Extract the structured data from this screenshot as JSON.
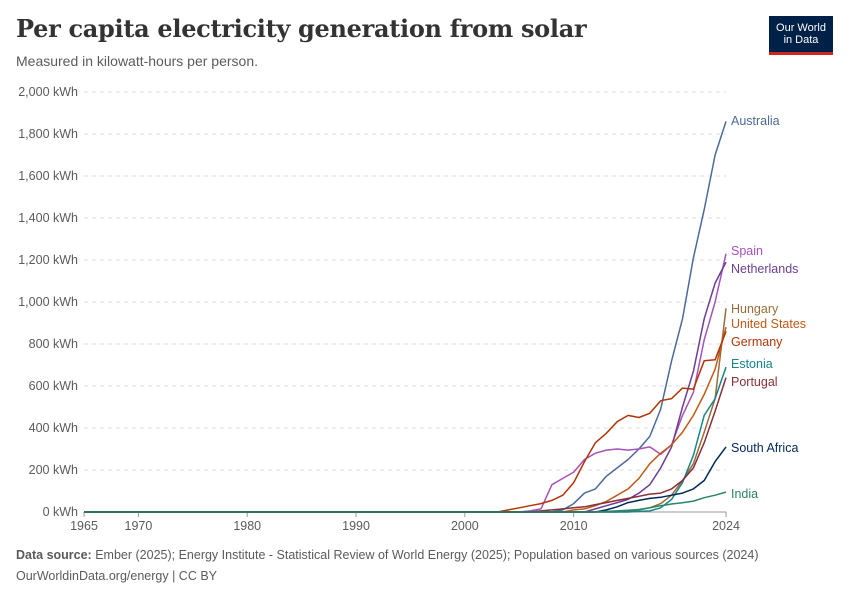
{
  "header": {
    "title": "Per capita electricity generation from solar",
    "subtitle": "Measured in kilowatt-hours per person."
  },
  "logo": {
    "line1": "Our World",
    "line2": "in Data",
    "bg_color": "#002147",
    "accent_color": "#ce261e"
  },
  "footer": {
    "source_label": "Data source:",
    "source_text": " Ember (2025); Energy Institute - Statistical Review of World Energy (2025); Population based on various sources (2024)",
    "url_text": "OurWorldinData.org/energy | CC BY"
  },
  "chart_data": {
    "type": "line",
    "title": "Per capita electricity generation from solar",
    "subtitle": "Measured in kilowatt-hours per person.",
    "xlabel": "",
    "ylabel": "",
    "xlim": [
      1965,
      2024
    ],
    "ylim": [
      0,
      2000
    ],
    "x_ticks": [
      1965,
      1970,
      1980,
      1990,
      2000,
      2010,
      2024
    ],
    "y_ticks": [
      0,
      200,
      400,
      600,
      800,
      1000,
      1200,
      1400,
      1600,
      1800,
      2000
    ],
    "y_tick_labels": [
      "0 kWh",
      "200 kWh",
      "400 kWh",
      "600 kWh",
      "800 kWh",
      "1,000 kWh",
      "1,200 kWh",
      "1,400 kWh",
      "1,600 kWh",
      "1,800 kWh",
      "2,000 kWh"
    ],
    "grid": "horizontal dashed",
    "legend": "right, end-of-line labels",
    "series": [
      {
        "name": "Australia",
        "color": "#4c6a9c",
        "points": [
          [
            1965,
            0
          ],
          [
            2005,
            0
          ],
          [
            2008,
            1
          ],
          [
            2009,
            10
          ],
          [
            2010,
            40
          ],
          [
            2011,
            90
          ],
          [
            2012,
            110
          ],
          [
            2013,
            170
          ],
          [
            2014,
            210
          ],
          [
            2015,
            250
          ],
          [
            2016,
            300
          ],
          [
            2017,
            360
          ],
          [
            2018,
            490
          ],
          [
            2019,
            720
          ],
          [
            2020,
            920
          ],
          [
            2021,
            1210
          ],
          [
            2022,
            1440
          ],
          [
            2023,
            1700
          ],
          [
            2024,
            1860
          ]
        ]
      },
      {
        "name": "Spain",
        "color": "#a652ba",
        "points": [
          [
            1965,
            0
          ],
          [
            2005,
            0
          ],
          [
            2006,
            5
          ],
          [
            2007,
            15
          ],
          [
            2008,
            130
          ],
          [
            2009,
            160
          ],
          [
            2010,
            190
          ],
          [
            2011,
            250
          ],
          [
            2012,
            280
          ],
          [
            2013,
            295
          ],
          [
            2014,
            300
          ],
          [
            2015,
            295
          ],
          [
            2016,
            300
          ],
          [
            2017,
            310
          ],
          [
            2018,
            275
          ],
          [
            2019,
            320
          ],
          [
            2020,
            460
          ],
          [
            2021,
            570
          ],
          [
            2022,
            820
          ],
          [
            2023,
            1000
          ],
          [
            2024,
            1230
          ]
        ]
      },
      {
        "name": "Netherlands",
        "color": "#6d3e91",
        "points": [
          [
            1965,
            0
          ],
          [
            2011,
            0
          ],
          [
            2012,
            15
          ],
          [
            2013,
            30
          ],
          [
            2014,
            45
          ],
          [
            2015,
            60
          ],
          [
            2016,
            90
          ],
          [
            2017,
            130
          ],
          [
            2018,
            210
          ],
          [
            2019,
            310
          ],
          [
            2020,
            500
          ],
          [
            2021,
            670
          ],
          [
            2022,
            920
          ],
          [
            2023,
            1090
          ],
          [
            2024,
            1190
          ]
        ]
      },
      {
        "name": "Hungary",
        "color": "#996d39",
        "points": [
          [
            1965,
            0
          ],
          [
            2014,
            0
          ],
          [
            2015,
            5
          ],
          [
            2016,
            10
          ],
          [
            2017,
            20
          ],
          [
            2018,
            40
          ],
          [
            2019,
            80
          ],
          [
            2020,
            150
          ],
          [
            2021,
            230
          ],
          [
            2022,
            380
          ],
          [
            2023,
            540
          ],
          [
            2024,
            970
          ]
        ]
      },
      {
        "name": "United States",
        "color": "#c05917",
        "points": [
          [
            1965,
            0
          ],
          [
            2009,
            0
          ],
          [
            2010,
            10
          ],
          [
            2011,
            15
          ],
          [
            2012,
            30
          ],
          [
            2013,
            50
          ],
          [
            2014,
            80
          ],
          [
            2015,
            110
          ],
          [
            2016,
            160
          ],
          [
            2017,
            230
          ],
          [
            2018,
            280
          ],
          [
            2019,
            320
          ],
          [
            2020,
            380
          ],
          [
            2021,
            460
          ],
          [
            2022,
            560
          ],
          [
            2023,
            680
          ],
          [
            2024,
            880
          ]
        ]
      },
      {
        "name": "Germany",
        "color": "#b13507",
        "points": [
          [
            1965,
            0
          ],
          [
            2003,
            0
          ],
          [
            2004,
            10
          ],
          [
            2005,
            20
          ],
          [
            2006,
            30
          ],
          [
            2007,
            40
          ],
          [
            2008,
            55
          ],
          [
            2009,
            80
          ],
          [
            2010,
            140
          ],
          [
            2011,
            240
          ],
          [
            2012,
            330
          ],
          [
            2013,
            375
          ],
          [
            2014,
            430
          ],
          [
            2015,
            460
          ],
          [
            2016,
            450
          ],
          [
            2017,
            470
          ],
          [
            2018,
            530
          ],
          [
            2019,
            540
          ],
          [
            2020,
            590
          ],
          [
            2021,
            585
          ],
          [
            2022,
            720
          ],
          [
            2023,
            725
          ],
          [
            2024,
            860
          ]
        ]
      },
      {
        "name": "Estonia",
        "color": "#18848c",
        "points": [
          [
            1965,
            0
          ],
          [
            2015,
            0
          ],
          [
            2016,
            3
          ],
          [
            2017,
            5
          ],
          [
            2018,
            20
          ],
          [
            2019,
            60
          ],
          [
            2020,
            140
          ],
          [
            2021,
            270
          ],
          [
            2022,
            460
          ],
          [
            2023,
            540
          ],
          [
            2024,
            690
          ]
        ]
      },
      {
        "name": "Portugal",
        "color": "#883039",
        "points": [
          [
            1965,
            0
          ],
          [
            2006,
            0
          ],
          [
            2007,
            5
          ],
          [
            2008,
            10
          ],
          [
            2009,
            15
          ],
          [
            2010,
            20
          ],
          [
            2011,
            25
          ],
          [
            2012,
            35
          ],
          [
            2013,
            45
          ],
          [
            2014,
            55
          ],
          [
            2015,
            65
          ],
          [
            2016,
            75
          ],
          [
            2017,
            85
          ],
          [
            2018,
            90
          ],
          [
            2019,
            110
          ],
          [
            2020,
            150
          ],
          [
            2021,
            210
          ],
          [
            2022,
            330
          ],
          [
            2023,
            480
          ],
          [
            2024,
            640
          ]
        ]
      },
      {
        "name": "South Africa",
        "color": "#00295b",
        "points": [
          [
            1965,
            0
          ],
          [
            2012,
            0
          ],
          [
            2013,
            10
          ],
          [
            2014,
            25
          ],
          [
            2015,
            45
          ],
          [
            2016,
            55
          ],
          [
            2017,
            65
          ],
          [
            2018,
            70
          ],
          [
            2019,
            80
          ],
          [
            2020,
            90
          ],
          [
            2021,
            110
          ],
          [
            2022,
            150
          ],
          [
            2023,
            240
          ],
          [
            2024,
            310
          ]
        ]
      },
      {
        "name": "India",
        "color": "#2c8465",
        "points": [
          [
            1965,
            0
          ],
          [
            2012,
            0
          ],
          [
            2013,
            3
          ],
          [
            2014,
            5
          ],
          [
            2015,
            8
          ],
          [
            2016,
            12
          ],
          [
            2017,
            20
          ],
          [
            2018,
            30
          ],
          [
            2019,
            38
          ],
          [
            2020,
            44
          ],
          [
            2021,
            52
          ],
          [
            2022,
            68
          ],
          [
            2023,
            80
          ],
          [
            2024,
            95
          ]
        ]
      }
    ]
  }
}
